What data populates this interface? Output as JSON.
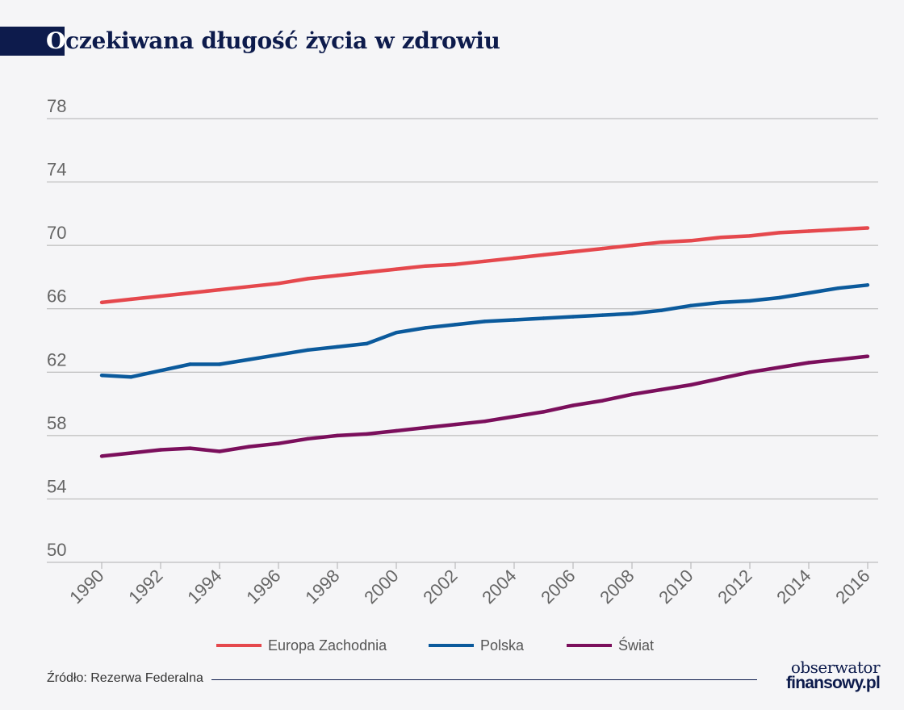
{
  "title_first": "O",
  "title_rest": "czekiwana długość życia w zdrowiu",
  "source": "Źródło: Rezerwa Federalna",
  "logo": {
    "line1": "obserwator",
    "line2": "finansowy.pl"
  },
  "colors": {
    "navy": "#0d1b4c",
    "grid": "#b0b0b0",
    "axis_text": "#666666"
  },
  "chart_data": {
    "type": "line",
    "title": "Oczekiwana długość życia w zdrowiu",
    "xlabel": "",
    "ylabel": "",
    "ylim": [
      50,
      78
    ],
    "yticks": [
      50,
      54,
      58,
      62,
      66,
      70,
      74,
      78
    ],
    "xlim": [
      1990,
      2016
    ],
    "xticks": [
      1990,
      1992,
      1994,
      1996,
      1998,
      2000,
      2002,
      2004,
      2006,
      2008,
      2010,
      2012,
      2014,
      2016
    ],
    "grid": true,
    "legend_position": "bottom",
    "x": [
      1990,
      1991,
      1992,
      1993,
      1994,
      1995,
      1996,
      1997,
      1998,
      1999,
      2000,
      2001,
      2002,
      2003,
      2004,
      2005,
      2006,
      2007,
      2008,
      2009,
      2010,
      2011,
      2012,
      2013,
      2014,
      2015,
      2016
    ],
    "series": [
      {
        "name": "Europa Zachodnia",
        "color": "#e5484d",
        "values": [
          66.4,
          66.6,
          66.8,
          67.0,
          67.2,
          67.4,
          67.6,
          67.9,
          68.1,
          68.3,
          68.5,
          68.7,
          68.8,
          69.0,
          69.2,
          69.4,
          69.6,
          69.8,
          70.0,
          70.2,
          70.3,
          70.5,
          70.6,
          70.8,
          70.9,
          71.0,
          71.1
        ],
        "v2": []
      },
      {
        "name": "Polska",
        "color": "#0b5a9c",
        "values": [
          61.8,
          61.7,
          62.1,
          62.5,
          62.5,
          62.8,
          63.1,
          63.4,
          63.6,
          63.8,
          64.5,
          64.8,
          65.0,
          65.2,
          65.3,
          65.4,
          65.5,
          65.6,
          65.7,
          65.9,
          66.2,
          66.4,
          66.5,
          66.7,
          67.0,
          67.3,
          67.5
        ]
      },
      {
        "name": "Świat",
        "color": "#7b0f5c",
        "values": [
          56.7,
          56.9,
          57.1,
          57.2,
          57.0,
          57.3,
          57.5,
          57.8,
          58.0,
          58.1,
          58.3,
          58.5,
          58.7,
          58.9,
          59.2,
          59.5,
          59.9,
          60.2,
          60.6,
          60.9,
          61.2,
          61.6,
          62.0,
          62.3,
          62.6,
          62.8,
          63.0
        ]
      }
    ]
  }
}
